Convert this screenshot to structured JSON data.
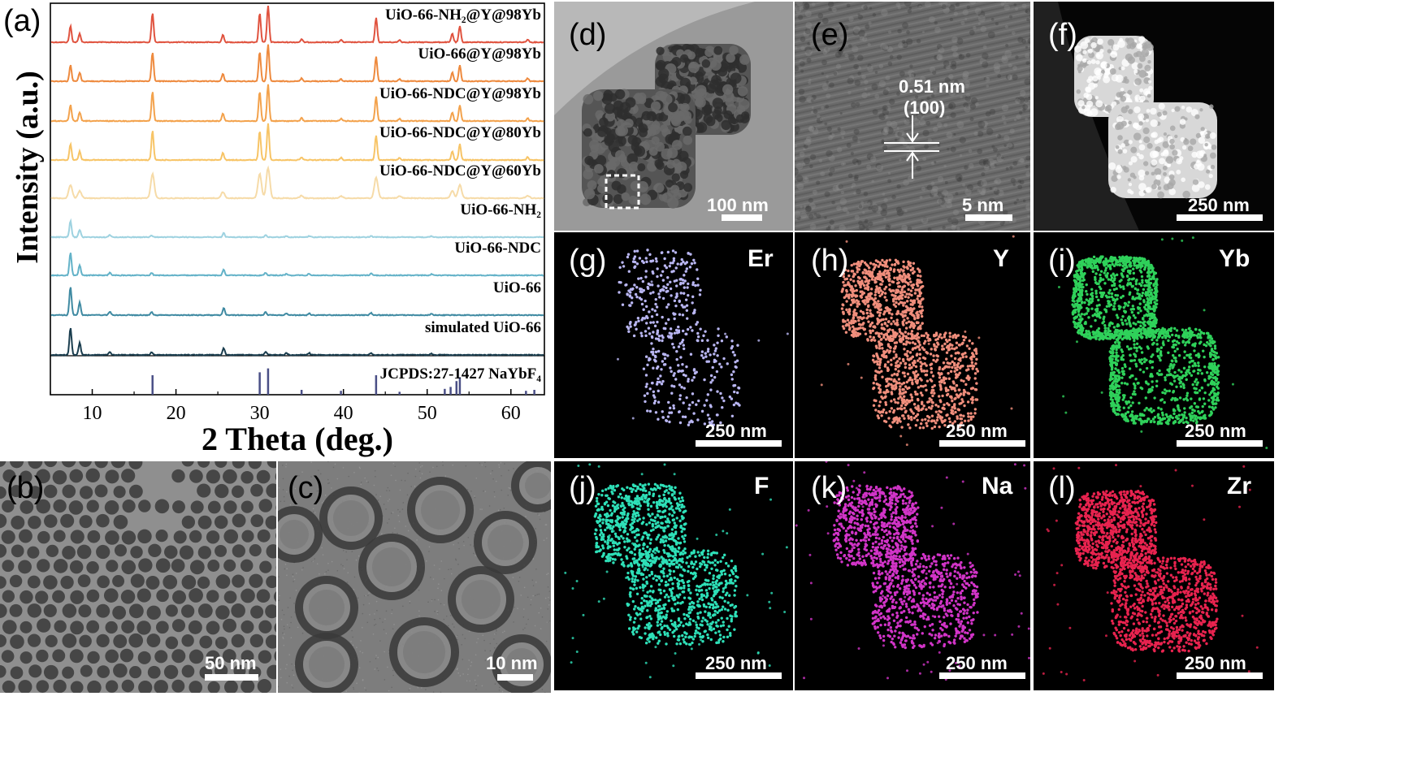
{
  "chart_data": {
    "type": "line",
    "panel_label": "(a)",
    "xlabel": "2 Theta (deg.)",
    "ylabel": "Intensity (a.u.)",
    "xlim": [
      5,
      64
    ],
    "xticks": [
      10,
      20,
      30,
      40,
      50,
      60
    ],
    "series": [
      {
        "name": "UiO-66-NH₂@Y@98Yb",
        "color": "#e0533f",
        "family": "upcon",
        "width": 1
      },
      {
        "name": "UiO-66@Y@98Yb",
        "color": "#ee8a3e",
        "family": "upcon",
        "width": 1
      },
      {
        "name": "UiO-66-NDC@Y@98Yb",
        "color": "#f3a24c",
        "family": "upcon",
        "width": 1
      },
      {
        "name": "UiO-66-NDC@Y@80Yb",
        "color": "#f7c466",
        "family": "upcon",
        "width": 1
      },
      {
        "name": "UiO-66-NDC@Y@60Yb",
        "color": "#f6dba8",
        "family": "upcon",
        "width": 1.6
      },
      {
        "name": "UiO-66-NH₂",
        "color": "#9ed2e0",
        "family": "mof"
      },
      {
        "name": "UiO-66-NDC",
        "color": "#63b2c8",
        "family": "mof"
      },
      {
        "name": "UiO-66",
        "color": "#3f8aa2",
        "family": "mof"
      },
      {
        "name": "simulated UiO-66",
        "color": "#1a3d4e",
        "family": "mof"
      }
    ],
    "reference": {
      "name": "JCPDS:27-1427 NaYbF₄",
      "color": "#4a4f86",
      "peaks": [
        {
          "x": 17.2,
          "h": 1.0
        },
        {
          "x": 30.0,
          "h": 1.15
        },
        {
          "x": 31.0,
          "h": 1.35
        },
        {
          "x": 35.0,
          "h": 0.25
        },
        {
          "x": 39.7,
          "h": 0.2
        },
        {
          "x": 43.9,
          "h": 1.0
        },
        {
          "x": 46.7,
          "h": 0.15
        },
        {
          "x": 52.1,
          "h": 0.3
        },
        {
          "x": 52.8,
          "h": 0.4
        },
        {
          "x": 53.5,
          "h": 0.7
        },
        {
          "x": 53.9,
          "h": 0.9
        },
        {
          "x": 61.8,
          "h": 0.2
        },
        {
          "x": 62.8,
          "h": 0.25
        }
      ]
    },
    "peaks_upcon": [
      {
        "x": 7.4,
        "h": 0.55
      },
      {
        "x": 8.5,
        "h": 0.3
      },
      {
        "x": 17.2,
        "h": 1.0
      },
      {
        "x": 25.6,
        "h": 0.25
      },
      {
        "x": 30.0,
        "h": 1.0
      },
      {
        "x": 31.0,
        "h": 1.25
      },
      {
        "x": 35.0,
        "h": 0.1
      },
      {
        "x": 39.7,
        "h": 0.08
      },
      {
        "x": 43.9,
        "h": 0.85
      },
      {
        "x": 46.7,
        "h": 0.08
      },
      {
        "x": 53.0,
        "h": 0.3
      },
      {
        "x": 53.9,
        "h": 0.55
      },
      {
        "x": 62.0,
        "h": 0.1
      }
    ],
    "peaks_mof": [
      {
        "x": 7.4,
        "h": 1.0
      },
      {
        "x": 8.5,
        "h": 0.45
      },
      {
        "x": 12.1,
        "h": 0.12
      },
      {
        "x": 17.1,
        "h": 0.1
      },
      {
        "x": 25.7,
        "h": 0.25
      },
      {
        "x": 30.7,
        "h": 0.12
      },
      {
        "x": 33.2,
        "h": 0.07
      },
      {
        "x": 35.9,
        "h": 0.07
      },
      {
        "x": 43.3,
        "h": 0.08
      },
      {
        "x": 50.5,
        "h": 0.05
      }
    ]
  },
  "panels": {
    "b": {
      "label": "(b)",
      "scale": "50 nm"
    },
    "c": {
      "label": "(c)",
      "scale": "10 nm"
    },
    "d": {
      "label": "(d)",
      "scale": "100 nm"
    },
    "e": {
      "label": "(e)",
      "scale": "5 nm",
      "spacing": "0.51 nm",
      "plane": "(100)"
    },
    "f": {
      "label": "(f)",
      "scale": "250 nm"
    },
    "g": {
      "label": "(g)",
      "element": "Er",
      "scale": "250 nm",
      "color": "#b9b6f2"
    },
    "h": {
      "label": "(h)",
      "element": "Y",
      "scale": "250 nm",
      "color": "#f08e7c"
    },
    "i": {
      "label": "(i)",
      "element": "Yb",
      "scale": "250 nm",
      "color": "#2fd15a"
    },
    "j": {
      "label": "(j)",
      "element": "F",
      "scale": "250 nm",
      "color": "#2ee0b8"
    },
    "k": {
      "label": "(k)",
      "element": "Na",
      "scale": "250 nm",
      "color": "#d234c8"
    },
    "l": {
      "label": "(l)",
      "element": "Zr",
      "scale": "250 nm",
      "color": "#e8234f"
    }
  }
}
